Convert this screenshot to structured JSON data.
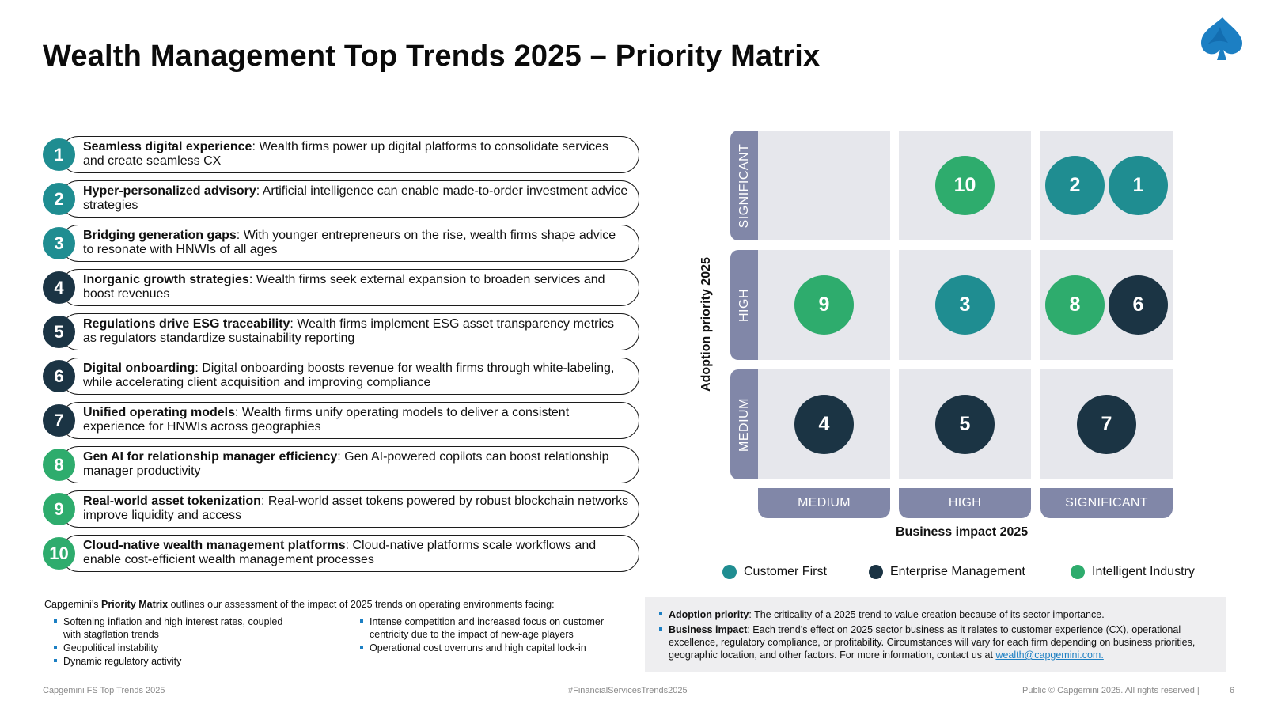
{
  "title": "Wealth Management Top Trends 2025 – Priority Matrix",
  "colors": {
    "customer_first": "#1f8d91",
    "enterprise_management": "#1b3444",
    "intelligent_industry": "#2eac6d",
    "axis_bar": "#8187a8",
    "cell": "#e6e7ec",
    "link": "#1c7fc3"
  },
  "trends": [
    {
      "num": "1",
      "bold": "Seamless digital experience",
      "rest": ": Wealth firms power up digital platforms to consolidate services and create seamless CX",
      "category": "customer_first"
    },
    {
      "num": "2",
      "bold": "Hyper-personalized advisory",
      "rest": ": Artificial intelligence can enable made-to-order investment advice strategies",
      "category": "customer_first"
    },
    {
      "num": "3",
      "bold": "Bridging generation gaps",
      "rest": ": With younger entrepreneurs on the rise, wealth firms shape advice to resonate with HNWIs of all ages",
      "category": "customer_first"
    },
    {
      "num": "4",
      "bold": "Inorganic growth strategies",
      "rest": ": Wealth firms seek external expansion to broaden services and boost revenues",
      "category": "enterprise_management"
    },
    {
      "num": "5",
      "bold": "Regulations drive ESG traceability",
      "rest": ": Wealth firms implement ESG asset transparency metrics as regulators standardize sustainability reporting",
      "category": "enterprise_management"
    },
    {
      "num": "6",
      "bold": "Digital onboarding",
      "rest": ": Digital onboarding boosts revenue for wealth firms through white-labeling, while accelerating client acquisition and improving compliance",
      "category": "enterprise_management"
    },
    {
      "num": "7",
      "bold": "Unified operating models",
      "rest": ": Wealth firms unify operating models to deliver a consistent experience for HNWIs across geographies",
      "category": "enterprise_management"
    },
    {
      "num": "8",
      "bold": "Gen AI for relationship manager efficiency",
      "rest": ": Gen AI-powered copilots can boost relationship manager productivity",
      "category": "intelligent_industry"
    },
    {
      "num": "9",
      "bold": "Real-world asset tokenization",
      "rest": ": Real-world asset tokens powered by robust blockchain networks improve liquidity and access",
      "category": "intelligent_industry"
    },
    {
      "num": "10",
      "bold": "Cloud-native wealth management platforms",
      "rest": ": Cloud-native platforms scale workflows and enable cost-efficient wealth management processes",
      "category": "intelligent_industry"
    }
  ],
  "matrix": {
    "y_title": "Adoption priority 2025",
    "x_title": "Business impact 2025",
    "y_levels": [
      "SIGNIFICANT",
      "HIGH",
      "MEDIUM"
    ],
    "x_levels": [
      "MEDIUM",
      "HIGH",
      "SIGNIFICANT"
    ],
    "placements": [
      {
        "num": "10",
        "adoption": "SIGNIFICANT",
        "impact": "HIGH"
      },
      {
        "num": "2",
        "adoption": "SIGNIFICANT",
        "impact": "SIGNIFICANT"
      },
      {
        "num": "1",
        "adoption": "SIGNIFICANT",
        "impact": "SIGNIFICANT"
      },
      {
        "num": "9",
        "adoption": "HIGH",
        "impact": "MEDIUM"
      },
      {
        "num": "3",
        "adoption": "HIGH",
        "impact": "HIGH"
      },
      {
        "num": "8",
        "adoption": "HIGH",
        "impact": "SIGNIFICANT"
      },
      {
        "num": "6",
        "adoption": "HIGH",
        "impact": "SIGNIFICANT"
      },
      {
        "num": "4",
        "adoption": "MEDIUM",
        "impact": "MEDIUM"
      },
      {
        "num": "5",
        "adoption": "MEDIUM",
        "impact": "HIGH"
      },
      {
        "num": "7",
        "adoption": "MEDIUM",
        "impact": "SIGNIFICANT"
      }
    ]
  },
  "legend": [
    {
      "key": "customer_first",
      "label": "Customer First"
    },
    {
      "key": "enterprise_management",
      "label": "Enterprise Management"
    },
    {
      "key": "intelligent_industry",
      "label": "Intelligent Industry"
    }
  ],
  "notes": {
    "intro_pre": "Capgemini’s ",
    "intro_bold": "Priority Matrix",
    "intro_post": " outlines our assessment of the impact of 2025 trends on operating environments facing:",
    "left_bullets": [
      "Softening inflation and high interest rates, coupled with stagflation trends",
      "Geopolitical instability",
      "Dynamic regulatory activity"
    ],
    "right_bullets": [
      "Intense competition and increased focus on customer centricity due to the impact of new-age players",
      "Operational cost overruns and high capital lock-in"
    ]
  },
  "definitions": {
    "adoption_label": "Adoption priority",
    "adoption_text": ": The criticality of a 2025 trend to value creation because of its sector importance.",
    "impact_label": "Business impact",
    "impact_text": ": Each trend’s effect on 2025 sector business as it relates to customer experience (CX), operational excellence, regulatory compliance, or profitability. Circumstances will vary for each firm depending on business priorities, geographic location, and other factors. For more information, contact us at ",
    "email": "wealth@capgemini.com",
    "email_suffix": "."
  },
  "footer": {
    "left": "Capgemini FS Top Trends 2025",
    "center": "#FinancialServicesTrends2025",
    "right": "Public © Capgemini 2025. All rights reserved  |",
    "page": "6"
  }
}
